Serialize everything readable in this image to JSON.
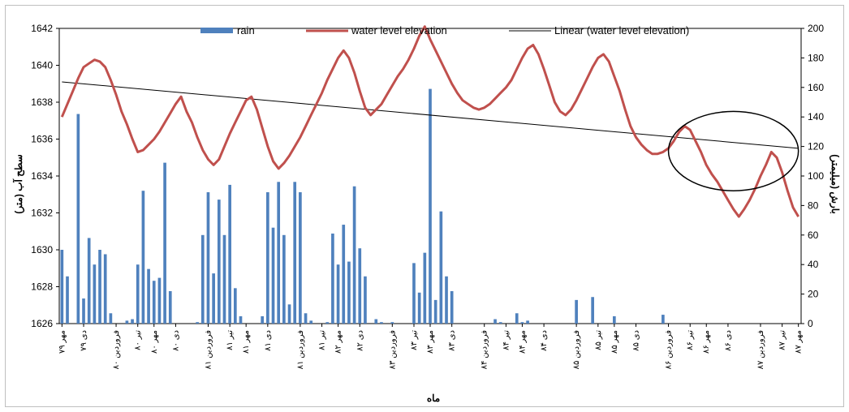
{
  "chart_data": {
    "type": "bar+line",
    "title": "",
    "xlabel": "ماه",
    "ylabel_left": "سطح آب (متر)",
    "ylabel_right": "بارش (میلیمتر)",
    "y_left": {
      "min": 1626,
      "max": 1642,
      "step": 2
    },
    "y_right": {
      "min": 0,
      "max": 200,
      "step": 20
    },
    "legend": {
      "position": "top",
      "items": [
        {
          "name": "rain",
          "type": "bar",
          "color": "#4f81bd"
        },
        {
          "name": "water level elevation",
          "type": "line",
          "color": "#c0504d"
        },
        {
          "name": "Linear (water level elevation)",
          "type": "line",
          "color": "#000000"
        }
      ]
    },
    "x_count": 137,
    "x_ticks": [
      {
        "i": 0,
        "label": "مهر ۷۹"
      },
      {
        "i": 4,
        "label": "دی ۷۹"
      },
      {
        "i": 10,
        "label": "فروردین ۸۰"
      },
      {
        "i": 14,
        "label": "تیر ۸۰"
      },
      {
        "i": 17,
        "label": "مهر ۸۰"
      },
      {
        "i": 21,
        "label": "دی ۸۰"
      },
      {
        "i": 27,
        "label": "فروردین ۸۱"
      },
      {
        "i": 31,
        "label": "تیر ۸۱"
      },
      {
        "i": 34,
        "label": "مهر ۸۱"
      },
      {
        "i": 38,
        "label": "دی ۸۱"
      },
      {
        "i": 44,
        "label": "فروردین ۸۱"
      },
      {
        "i": 48,
        "label": "تیر ۸۱"
      },
      {
        "i": 51,
        "label": "مهر ۸۲"
      },
      {
        "i": 55,
        "label": "دی ۸۲"
      },
      {
        "i": 61,
        "label": "فروردین ۸۳"
      },
      {
        "i": 65,
        "label": "تیر ۸۳"
      },
      {
        "i": 68,
        "label": "مهر ۸۳"
      },
      {
        "i": 72,
        "label": "دی ۸۳"
      },
      {
        "i": 78,
        "label": "فروردین ۸۴"
      },
      {
        "i": 82,
        "label": "تیر ۸۴"
      },
      {
        "i": 85,
        "label": "مهر ۸۴"
      },
      {
        "i": 89,
        "label": "دی ۸۴"
      },
      {
        "i": 95,
        "label": "فروردین ۸۵"
      },
      {
        "i": 99,
        "label": "تیر ۸۵"
      },
      {
        "i": 102,
        "label": "مهر ۸۵"
      },
      {
        "i": 106,
        "label": "دی ۸۵"
      },
      {
        "i": 112,
        "label": "فروردین ۸۶"
      },
      {
        "i": 116,
        "label": "تیر ۸۶"
      },
      {
        "i": 119,
        "label": "مهر ۸۶"
      },
      {
        "i": 123,
        "label": "دی ۸۶"
      },
      {
        "i": 129,
        "label": "فروردین ۸۷"
      },
      {
        "i": 133,
        "label": "تیر ۸۷"
      },
      {
        "i": 136,
        "label": "مهر ۸۷"
      }
    ],
    "series": [
      {
        "name": "rain",
        "type": "bar",
        "axis": "right",
        "values": [
          50,
          32,
          0,
          142,
          17,
          58,
          40,
          50,
          47,
          7,
          0,
          0,
          2,
          3,
          40,
          90,
          37,
          29,
          31,
          109,
          22,
          0,
          0,
          0,
          0,
          1,
          60,
          89,
          34,
          84,
          60,
          94,
          24,
          5,
          0,
          0,
          0,
          5,
          89,
          65,
          96,
          60,
          13,
          96,
          89,
          7,
          2,
          0,
          0,
          1,
          61,
          40,
          67,
          42,
          93,
          51,
          32,
          0,
          3,
          1,
          0,
          1,
          0,
          0,
          0,
          41,
          21,
          48,
          159,
          16,
          76,
          32,
          22,
          0,
          0,
          0,
          0,
          0,
          0,
          0,
          3,
          1,
          0,
          0,
          7,
          1,
          2,
          0,
          0,
          0,
          0,
          0,
          0,
          0,
          0,
          16,
          0,
          0,
          18,
          0,
          0,
          0,
          5,
          0,
          0,
          0,
          0,
          0,
          0,
          0,
          0,
          6,
          0,
          0,
          0,
          0,
          0,
          0,
          0,
          0,
          0,
          0,
          0,
          0,
          0,
          0,
          0,
          0,
          0,
          0,
          0,
          0,
          0,
          0,
          0,
          0,
          0
        ]
      },
      {
        "name": "water level elevation",
        "type": "line",
        "axis": "left",
        "values": [
          1637.2,
          1637.9,
          1638.6,
          1639.3,
          1639.9,
          1640.1,
          1640.3,
          1640.2,
          1639.9,
          1639.2,
          1638.4,
          1637.5,
          1636.8,
          1636.0,
          1635.3,
          1635.4,
          1635.7,
          1636.0,
          1636.4,
          1636.9,
          1637.4,
          1637.9,
          1638.3,
          1637.5,
          1636.9,
          1636.1,
          1635.4,
          1634.9,
          1634.6,
          1634.9,
          1635.6,
          1636.3,
          1636.9,
          1637.5,
          1638.1,
          1638.3,
          1637.6,
          1636.6,
          1635.6,
          1634.8,
          1634.4,
          1634.7,
          1635.1,
          1635.6,
          1636.1,
          1636.7,
          1637.3,
          1637.9,
          1638.5,
          1639.2,
          1639.8,
          1640.4,
          1640.8,
          1640.4,
          1639.6,
          1638.6,
          1637.7,
          1637.3,
          1637.6,
          1637.9,
          1638.4,
          1638.9,
          1639.4,
          1639.8,
          1640.3,
          1640.9,
          1641.6,
          1642.1,
          1641.4,
          1640.8,
          1640.2,
          1639.6,
          1639.0,
          1638.5,
          1638.1,
          1637.9,
          1637.7,
          1637.6,
          1637.7,
          1637.9,
          1638.2,
          1638.5,
          1638.8,
          1639.2,
          1639.8,
          1640.4,
          1640.9,
          1641.1,
          1640.6,
          1639.8,
          1638.9,
          1638.0,
          1637.5,
          1637.3,
          1637.6,
          1638.1,
          1638.7,
          1639.3,
          1639.9,
          1640.4,
          1640.6,
          1640.2,
          1639.4,
          1638.6,
          1637.6,
          1636.7,
          1636.1,
          1635.7,
          1635.4,
          1635.2,
          1635.2,
          1635.3,
          1635.5,
          1635.9,
          1636.4,
          1636.7,
          1636.5,
          1635.9,
          1635.3,
          1634.6,
          1634.1,
          1633.7,
          1633.2,
          1632.7,
          1632.2,
          1631.8,
          1632.2,
          1632.7,
          1633.3,
          1634.0,
          1634.6,
          1635.3,
          1635.0,
          1634.2,
          1633.2,
          1632.3,
          1631.8
        ]
      },
      {
        "name": "Linear (water level elevation)",
        "type": "trendline",
        "axis": "left",
        "start": 1639.1,
        "end": 1635.5
      }
    ],
    "annotations": [
      {
        "type": "ellipse",
        "x_from": 112,
        "x_to": 136,
        "y_from": 1633.2,
        "y_to": 1637.5
      }
    ]
  }
}
